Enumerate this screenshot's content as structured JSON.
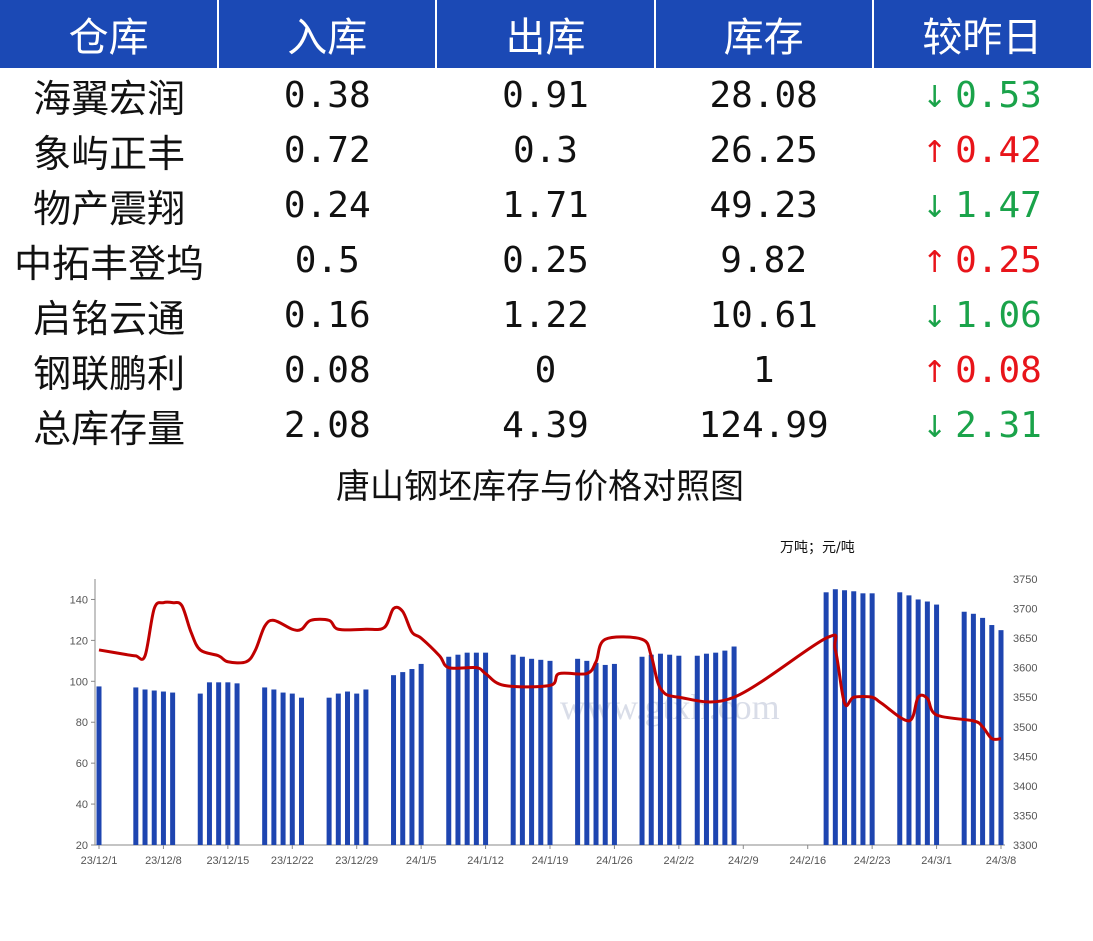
{
  "table": {
    "headers": [
      "仓库",
      "入库",
      "出库",
      "库存",
      "较昨日"
    ],
    "rows": [
      {
        "name": "海翼宏润",
        "in": "0.38",
        "out": "0.91",
        "stock": "28.08",
        "dir": "down",
        "arrow": "↓",
        "change": "0.53"
      },
      {
        "name": "象屿正丰",
        "in": "0.72",
        "out": "0.3",
        "stock": "26.25",
        "dir": "up",
        "arrow": "↑",
        "change": "0.42"
      },
      {
        "name": "物产震翔",
        "in": "0.24",
        "out": "1.71",
        "stock": "49.23",
        "dir": "down",
        "arrow": "↓",
        "change": "1.47"
      },
      {
        "name": "中拓丰登坞",
        "in": "0.5",
        "out": "0.25",
        "stock": "9.82",
        "dir": "up",
        "arrow": "↑",
        "change": "0.25"
      },
      {
        "name": "启铭云通",
        "in": "0.16",
        "out": "1.22",
        "stock": "10.61",
        "dir": "down",
        "arrow": "↓",
        "change": "1.06"
      },
      {
        "name": "钢联鹏利",
        "in": "0.08",
        "out": "0",
        "stock": "1",
        "dir": "up",
        "arrow": "↑",
        "change": "0.08"
      },
      {
        "name": "总库存量",
        "in": "2.08",
        "out": "4.39",
        "stock": "124.99",
        "dir": "down",
        "arrow": "↓",
        "change": "2.31"
      }
    ],
    "colors": {
      "header_bg": "#1b49b5",
      "up": "#e8141a",
      "down": "#1aa34a"
    }
  },
  "chart_data": {
    "type": "bar",
    "title": "唐山钢坯库存与价格对照图",
    "unit_label": "万吨；元/吨",
    "watermark": "www.gtxh.com",
    "x_tick_labels": [
      "23/12/1",
      "23/12/8",
      "23/12/15",
      "23/12/22",
      "23/12/29",
      "24/1/5",
      "24/1/12",
      "24/1/19",
      "24/1/26",
      "24/2/2",
      "24/2/9",
      "24/2/16",
      "24/2/23",
      "24/3/1",
      "24/3/8"
    ],
    "x_start": "2023-12-01",
    "x_end": "2024-03-08",
    "ylim_left": [
      20,
      150
    ],
    "yticks_left": [
      20,
      40,
      60,
      80,
      100,
      120,
      140
    ],
    "ylim_right": [
      3300,
      3750
    ],
    "yticks_right": [
      3300,
      3350,
      3400,
      3450,
      3500,
      3550,
      3600,
      3650,
      3700,
      3750
    ],
    "bar_color": "#1e45b0",
    "line_color": "#c00000",
    "series": [
      {
        "type": "bar",
        "axis": "left",
        "points": [
          [
            "2023-12-01",
            97.5
          ],
          [
            "2023-12-05",
            97
          ],
          [
            "2023-12-06",
            96
          ],
          [
            "2023-12-07",
            95.5
          ],
          [
            "2023-12-08",
            95
          ],
          [
            "2023-12-09",
            94.5
          ],
          [
            "2023-12-12",
            94
          ],
          [
            "2023-12-13",
            99.5
          ],
          [
            "2023-12-14",
            99.5
          ],
          [
            "2023-12-15",
            99.5
          ],
          [
            "2023-12-16",
            99
          ],
          [
            "2023-12-19",
            97
          ],
          [
            "2023-12-20",
            96
          ],
          [
            "2023-12-21",
            94.5
          ],
          [
            "2023-12-22",
            94
          ],
          [
            "2023-12-23",
            92
          ],
          [
            "2023-12-26",
            92
          ],
          [
            "2023-12-27",
            94
          ],
          [
            "2023-12-28",
            95
          ],
          [
            "2023-12-29",
            94
          ],
          [
            "2023-12-30",
            96
          ],
          [
            "2024-01-02",
            103
          ],
          [
            "2024-01-03",
            104.5
          ],
          [
            "2024-01-04",
            106
          ],
          [
            "2024-01-05",
            108.5
          ],
          [
            "2024-01-08",
            112
          ],
          [
            "2024-01-09",
            113
          ],
          [
            "2024-01-10",
            114
          ],
          [
            "2024-01-11",
            114
          ],
          [
            "2024-01-12",
            114
          ],
          [
            "2024-01-15",
            113
          ],
          [
            "2024-01-16",
            112
          ],
          [
            "2024-01-17",
            111
          ],
          [
            "2024-01-18",
            110.5
          ],
          [
            "2024-01-19",
            110
          ],
          [
            "2024-01-22",
            111
          ],
          [
            "2024-01-23",
            110
          ],
          [
            "2024-01-24",
            109
          ],
          [
            "2024-01-25",
            108
          ],
          [
            "2024-01-26",
            108.5
          ],
          [
            "2024-01-29",
            112
          ],
          [
            "2024-01-30",
            113
          ],
          [
            "2024-01-31",
            113.5
          ],
          [
            "2024-02-01",
            113
          ],
          [
            "2024-02-02",
            112.5
          ],
          [
            "2024-02-04",
            112.5
          ],
          [
            "2024-02-05",
            113.5
          ],
          [
            "2024-02-06",
            114
          ],
          [
            "2024-02-07",
            115
          ],
          [
            "2024-02-08",
            117
          ],
          [
            "2024-02-18",
            143.5
          ],
          [
            "2024-02-19",
            145
          ],
          [
            "2024-02-20",
            144.5
          ],
          [
            "2024-02-21",
            144
          ],
          [
            "2024-02-22",
            143
          ],
          [
            "2024-02-23",
            143
          ],
          [
            "2024-02-26",
            143.5
          ],
          [
            "2024-02-27",
            142
          ],
          [
            "2024-02-28",
            140
          ],
          [
            "2024-02-29",
            139
          ],
          [
            "2024-03-01",
            137.5
          ],
          [
            "2024-03-04",
            134
          ],
          [
            "2024-03-05",
            133
          ],
          [
            "2024-03-06",
            131
          ],
          [
            "2024-03-07",
            127.5
          ],
          [
            "2024-03-08",
            125
          ]
        ]
      },
      {
        "type": "line",
        "axis": "right",
        "points": [
          [
            "2023-12-01",
            3630
          ],
          [
            "2023-12-04",
            3622
          ],
          [
            "2023-12-05",
            3620
          ],
          [
            "2023-12-06",
            3620
          ],
          [
            "2023-12-07",
            3700
          ],
          [
            "2023-12-08",
            3710
          ],
          [
            "2023-12-09",
            3710
          ],
          [
            "2023-12-10",
            3705
          ],
          [
            "2023-12-11",
            3660
          ],
          [
            "2023-12-12",
            3630
          ],
          [
            "2023-12-14",
            3620
          ],
          [
            "2023-12-15",
            3610
          ],
          [
            "2023-12-17",
            3610
          ],
          [
            "2023-12-18",
            3630
          ],
          [
            "2023-12-19",
            3670
          ],
          [
            "2023-12-20",
            3680
          ],
          [
            "2023-12-22",
            3665
          ],
          [
            "2023-12-23",
            3665
          ],
          [
            "2023-12-24",
            3680
          ],
          [
            "2023-12-26",
            3680
          ],
          [
            "2023-12-27",
            3665
          ],
          [
            "2023-12-30",
            3665
          ],
          [
            "2024-01-01",
            3668
          ],
          [
            "2024-01-02",
            3700
          ],
          [
            "2024-01-03",
            3695
          ],
          [
            "2024-01-04",
            3660
          ],
          [
            "2024-01-05",
            3650
          ],
          [
            "2024-01-07",
            3620
          ],
          [
            "2024-01-08",
            3600
          ],
          [
            "2024-01-11",
            3600
          ],
          [
            "2024-01-12",
            3590
          ],
          [
            "2024-01-14",
            3570
          ],
          [
            "2024-01-19",
            3570
          ],
          [
            "2024-01-20",
            3590
          ],
          [
            "2024-01-23",
            3590
          ],
          [
            "2024-01-24",
            3610
          ],
          [
            "2024-01-25",
            3648
          ],
          [
            "2024-01-29",
            3648
          ],
          [
            "2024-01-30",
            3620
          ],
          [
            "2024-01-31",
            3565
          ],
          [
            "2024-02-02",
            3550
          ],
          [
            "2024-02-08",
            3550
          ],
          [
            "2024-02-18",
            3650
          ],
          [
            "2024-02-19",
            3630
          ],
          [
            "2024-02-20",
            3540
          ],
          [
            "2024-02-21",
            3550
          ],
          [
            "2024-02-23",
            3550
          ],
          [
            "2024-02-24",
            3540
          ],
          [
            "2024-02-27",
            3510
          ],
          [
            "2024-02-28",
            3550
          ],
          [
            "2024-02-29",
            3548
          ],
          [
            "2024-03-01",
            3520
          ],
          [
            "2024-03-05",
            3510
          ],
          [
            "2024-03-06",
            3500
          ],
          [
            "2024-03-07",
            3480
          ],
          [
            "2024-03-08",
            3480
          ]
        ]
      }
    ]
  }
}
